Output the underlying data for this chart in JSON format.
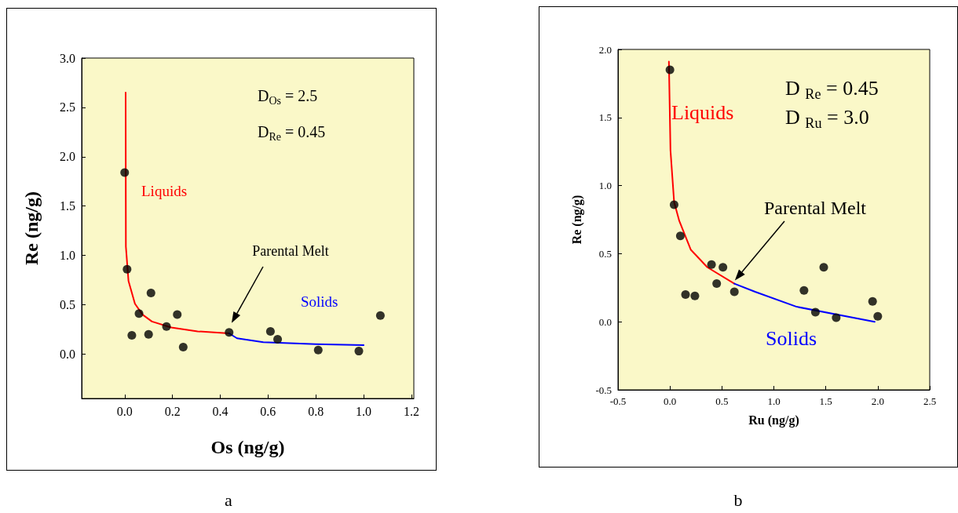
{
  "chart_data": [
    {
      "type": "scatter",
      "xlabel": "Os (ng/g)",
      "ylabel": "Re (ng/g)",
      "xlim": [
        -0.18,
        1.21
      ],
      "ylim": [
        -0.45,
        3.0
      ],
      "xticks": [
        {
          "value": 0,
          "label": "0.0"
        },
        0.2,
        0.4,
        0.6,
        0.8,
        {
          "value": 1,
          "label": "1.0"
        },
        1.2
      ],
      "yticks": [
        {
          "value": 0,
          "label": "0.0"
        },
        0.5,
        {
          "value": 1,
          "label": "1.0"
        },
        1.5,
        {
          "value": 2,
          "label": "2.0"
        },
        2.5,
        {
          "value": 3,
          "label": "3.0"
        }
      ],
      "grid": false,
      "series": [
        {
          "type": "scatter",
          "marker": "circle",
          "color": "#000000",
          "x": [
            0.0,
            0.01,
            0.11,
            0.06,
            0.22,
            0.175,
            0.03,
            0.1,
            0.245,
            0.437,
            0.61,
            0.64,
            0.81,
            0.98,
            1.07
          ],
          "values": [
            1.84,
            0.86,
            0.62,
            0.41,
            0.4,
            0.28,
            0.19,
            0.2,
            0.07,
            0.22,
            0.23,
            0.15,
            0.04,
            0.03,
            0.39
          ]
        },
        {
          "type": "line",
          "name": "Liquids",
          "marker": "none",
          "line_style": "solid",
          "color": "#ff0000",
          "x": [
            0.004,
            0.005,
            0.016,
            0.043,
            0.075,
            0.114,
            0.195,
            0.305,
            0.437
          ],
          "values": [
            2.65,
            1.09,
            0.74,
            0.51,
            0.4,
            0.33,
            0.27,
            0.23,
            0.21
          ]
        },
        {
          "type": "line",
          "name": "Solids",
          "marker": "none",
          "line_style": "solid",
          "color": "#0000ff",
          "x": [
            0.437,
            0.47,
            0.58,
            0.8,
            1.0
          ],
          "values": [
            0.21,
            0.16,
            0.12,
            0.1,
            0.09
          ]
        }
      ],
      "annotations": [
        "D$_{Os}$ = 2.5",
        "D$_{Re}$ = 0.45",
        "Parental Melt",
        "a"
      ]
    },
    {
      "type": "scatter",
      "xlabel": "Ru (ng/g)",
      "ylabel": "Re (ng/g)",
      "xlim": [
        -0.5,
        2.5
      ],
      "ylim": [
        -0.5,
        2.0
      ],
      "xticks": [
        -0.5,
        {
          "value": 0,
          "label": "0.0"
        },
        0.5,
        {
          "value": 1,
          "label": "1.0"
        },
        1.5,
        {
          "value": 2,
          "label": "2.0"
        },
        2.5
      ],
      "yticks": [
        -0.5,
        {
          "value": 0,
          "label": "0.0"
        },
        0.5,
        {
          "value": 1,
          "label": "1.0"
        },
        1.5,
        {
          "value": 2,
          "label": "2.0"
        }
      ],
      "grid": false,
      "series": [
        {
          "type": "scatter",
          "marker": "circle",
          "color": "#000000",
          "x": [
            0.0,
            0.04,
            0.1,
            0.4,
            0.51,
            0.45,
            0.15,
            0.24,
            0.62,
            1.29,
            1.48,
            1.4,
            1.6,
            1.95,
            2.0
          ],
          "values": [
            1.85,
            0.86,
            0.63,
            0.42,
            0.4,
            0.28,
            0.2,
            0.19,
            0.22,
            0.23,
            0.4,
            0.07,
            0.03,
            0.15,
            0.04
          ]
        },
        {
          "type": "line",
          "name": "Liquids",
          "marker": "none",
          "line_style": "solid",
          "color": "#ff0000",
          "x": [
            -0.01,
            0.005,
            0.04,
            0.09,
            0.2,
            0.36,
            0.62
          ],
          "values": [
            1.91,
            1.26,
            0.88,
            0.74,
            0.53,
            0.4,
            0.28
          ]
        },
        {
          "type": "line",
          "name": "Solids",
          "marker": "none",
          "line_style": "solid",
          "color": "#0000ff",
          "x": [
            0.62,
            0.82,
            1.22,
            1.97
          ],
          "values": [
            0.28,
            0.22,
            0.11,
            0.0
          ]
        }
      ],
      "annotations": [
        "D $_{Re}$ = 0.45",
        "D $_{Ru}$ = 3.0",
        "Parental Melt",
        "b"
      ]
    }
  ]
}
